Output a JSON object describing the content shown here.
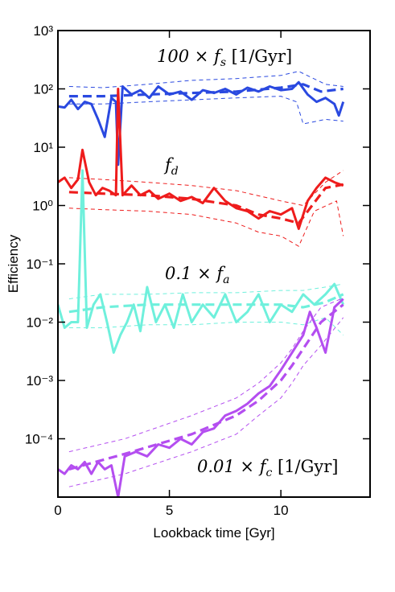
{
  "chart_data": {
    "type": "line",
    "log_y": true,
    "xlabel": "Lookback time [Gyr]",
    "ylabel": "Efficiency",
    "xlim": [
      0,
      14
    ],
    "xticks": [
      0,
      5,
      10
    ],
    "ylim": [
      1e-05,
      1000
    ],
    "yticks": [
      {
        "value": 0.0001,
        "label": "10⁻⁴"
      },
      {
        "value": 0.001,
        "label": "10⁻³"
      },
      {
        "value": 0.01,
        "label": "10⁻²"
      },
      {
        "value": 0.1,
        "label": "10⁻¹"
      },
      {
        "value": 1,
        "label": "10⁰"
      },
      {
        "value": 10,
        "label": "10¹"
      },
      {
        "value": 100,
        "label": "10²"
      },
      {
        "value": 1000,
        "label": "10³"
      }
    ],
    "annotations": [
      {
        "text": "100 × f",
        "sub": "s",
        "after": " [1/Gyr]"
      },
      {
        "text": "f",
        "sub": "d",
        "after": ""
      },
      {
        "text": "0.1 × f",
        "sub": "a",
        "after": ""
      },
      {
        "text": "0.01 × f",
        "sub": "c",
        "after": " [1/Gyr]"
      }
    ],
    "series": [
      {
        "color": "#2a49e0",
        "style": "solid",
        "x": [
          0,
          0.3,
          0.6,
          0.9,
          1.2,
          1.5,
          1.8,
          2.1,
          2.4,
          2.6,
          2.7,
          2.9,
          3.3,
          3.7,
          4.1,
          4.5,
          5,
          5.5,
          6,
          6.5,
          7,
          7.5,
          8,
          8.5,
          9,
          9.5,
          10,
          10.5,
          10.8,
          11.2,
          11.6,
          12,
          12.4,
          12.6,
          12.8
        ],
        "values": [
          50,
          48,
          65,
          45,
          60,
          55,
          30,
          15,
          70,
          60,
          5,
          110,
          80,
          95,
          70,
          110,
          80,
          90,
          65,
          95,
          85,
          100,
          80,
          105,
          90,
          110,
          95,
          100,
          130,
          80,
          60,
          70,
          55,
          35,
          60
        ]
      },
      {
        "color": "#2a49e0",
        "style": "median",
        "x": [
          0.5,
          2,
          4,
          6,
          8,
          10,
          11,
          11.8,
          12.8
        ],
        "values": [
          75,
          75,
          80,
          85,
          90,
          105,
          120,
          90,
          100
        ]
      },
      {
        "color": "#2a49e0",
        "style": "bound",
        "x": [
          0.5,
          2,
          4,
          6,
          8,
          10,
          10.8,
          12,
          12.8
        ],
        "values": [
          110,
          105,
          120,
          140,
          150,
          170,
          200,
          120,
          110
        ]
      },
      {
        "color": "#2a49e0",
        "style": "bound",
        "x": [
          0.5,
          2,
          4,
          6,
          8,
          10,
          10.7,
          11,
          12,
          12.8
        ],
        "values": [
          55,
          55,
          60,
          65,
          70,
          75,
          60,
          25,
          30,
          28
        ]
      },
      {
        "color": "#ee1c1c",
        "style": "solid",
        "x": [
          0,
          0.3,
          0.6,
          0.9,
          1.1,
          1.4,
          1.7,
          2,
          2.3,
          2.6,
          2.7,
          2.9,
          3.3,
          3.7,
          4.1,
          4.5,
          5,
          5.5,
          6,
          6.5,
          7,
          7.5,
          8,
          8.5,
          9,
          9.5,
          10,
          10.5,
          10.8,
          11.2,
          11.6,
          12,
          12.4,
          12.8
        ],
        "values": [
          2.5,
          3,
          2,
          2.8,
          9,
          2.5,
          1.5,
          2,
          1.8,
          1.5,
          100,
          1.5,
          2.2,
          1.5,
          1.8,
          1.3,
          1.6,
          1.2,
          1.4,
          1.1,
          2,
          1.2,
          0.9,
          0.8,
          0.6,
          0.8,
          0.7,
          0.9,
          0.4,
          1.2,
          2,
          3,
          2.5,
          2.2
        ]
      },
      {
        "color": "#ee1c1c",
        "style": "median",
        "x": [
          0.5,
          2,
          4,
          6,
          8,
          9,
          10,
          10.8,
          12,
          12.8
        ],
        "values": [
          1.7,
          1.6,
          1.5,
          1.3,
          1,
          0.7,
          0.6,
          0.5,
          2,
          2.3
        ]
      },
      {
        "color": "#ee1c1c",
        "style": "bound",
        "x": [
          0.5,
          2,
          4,
          6,
          8,
          10,
          11,
          12,
          12.8
        ],
        "values": [
          3,
          2.8,
          2.5,
          2.2,
          1.8,
          1.2,
          1,
          2.5,
          4
        ]
      },
      {
        "color": "#ee1c1c",
        "style": "bound",
        "x": [
          0.5,
          2,
          4,
          6,
          8,
          9,
          10,
          10.8,
          11.5,
          12.5,
          12.8
        ],
        "values": [
          0.9,
          0.85,
          0.8,
          0.7,
          0.5,
          0.35,
          0.3,
          0.2,
          0.8,
          1.2,
          0.3
        ]
      },
      {
        "color": "#6ff0dc",
        "style": "solid",
        "x": [
          0,
          0.3,
          0.6,
          0.9,
          1.1,
          1.3,
          1.6,
          1.9,
          2.2,
          2.5,
          2.8,
          3.1,
          3.4,
          3.7,
          4,
          4.4,
          4.8,
          5.2,
          5.6,
          6,
          6.5,
          7,
          7.5,
          8,
          8.5,
          9,
          9.5,
          10,
          10.5,
          11,
          11.5,
          12,
          12.4,
          12.8
        ],
        "values": [
          0.02,
          0.008,
          0.01,
          0.01,
          4,
          0.008,
          0.02,
          0.03,
          0.01,
          0.003,
          0.006,
          0.01,
          0.02,
          0.007,
          0.04,
          0.01,
          0.02,
          0.008,
          0.03,
          0.01,
          0.02,
          0.012,
          0.03,
          0.01,
          0.015,
          0.03,
          0.01,
          0.02,
          0.015,
          0.03,
          0.02,
          0.03,
          0.045,
          0.02
        ]
      },
      {
        "color": "#6ff0dc",
        "style": "median",
        "x": [
          0.5,
          2,
          4,
          6,
          8,
          10,
          11,
          12,
          12.8
        ],
        "values": [
          0.015,
          0.018,
          0.02,
          0.02,
          0.02,
          0.02,
          0.018,
          0.022,
          0.03
        ]
      },
      {
        "color": "#6ff0dc",
        "style": "bound",
        "x": [
          0.5,
          2,
          4,
          6,
          8,
          10,
          11,
          12,
          12.8
        ],
        "values": [
          0.025,
          0.03,
          0.03,
          0.032,
          0.032,
          0.035,
          0.035,
          0.04,
          0.045
        ]
      },
      {
        "color": "#6ff0dc",
        "style": "bound",
        "x": [
          0.5,
          2,
          4,
          6,
          8,
          10,
          11,
          12,
          12.8
        ],
        "values": [
          0.008,
          0.008,
          0.009,
          0.009,
          0.01,
          0.01,
          0.009,
          0.012,
          0.006
        ]
      },
      {
        "color": "#b44ef0",
        "style": "solid",
        "x": [
          0,
          0.3,
          0.6,
          0.9,
          1.2,
          1.5,
          1.8,
          2.1,
          2.4,
          2.7,
          3,
          3.5,
          4,
          4.5,
          5,
          5.5,
          6,
          6.5,
          7,
          7.5,
          8,
          8.5,
          9,
          9.5,
          10,
          10.5,
          11,
          11.3,
          11.6,
          12,
          12.4,
          12.8
        ],
        "values": [
          3e-05,
          2.5e-05,
          3.5e-05,
          3e-05,
          4e-05,
          2.5e-05,
          4e-05,
          3e-05,
          3.5e-05,
          1e-05,
          5e-05,
          6e-05,
          5e-05,
          8e-05,
          7e-05,
          0.0001,
          8e-05,
          0.00013,
          0.00015,
          0.00025,
          0.0003,
          0.0004,
          0.0006,
          0.0008,
          0.0015,
          0.003,
          0.006,
          0.015,
          0.008,
          0.003,
          0.018,
          0.025
        ]
      },
      {
        "color": "#b44ef0",
        "style": "median",
        "x": [
          0.5,
          3,
          6,
          8,
          9,
          10,
          10.5,
          11,
          11.8,
          12.8
        ],
        "values": [
          3e-05,
          5.5e-05,
          0.00012,
          0.00025,
          0.00045,
          0.001,
          0.0018,
          0.0035,
          0.01,
          0.02
        ]
      },
      {
        "color": "#b44ef0",
        "style": "bound",
        "x": [
          0.5,
          3,
          6,
          8,
          9,
          10,
          10.5,
          11,
          11.8,
          12.8
        ],
        "values": [
          6e-05,
          0.0001,
          0.00025,
          0.0005,
          0.0009,
          0.002,
          0.0035,
          0.007,
          0.018,
          0.026
        ]
      },
      {
        "color": "#b44ef0",
        "style": "bound",
        "x": [
          0.5,
          3,
          6,
          8,
          9,
          10,
          10.5,
          11,
          11.8,
          12.8
        ],
        "values": [
          1.5e-05,
          2.5e-05,
          6e-05,
          0.00012,
          0.00025,
          0.0005,
          0.0009,
          0.0018,
          0.004,
          0.012
        ]
      }
    ]
  }
}
